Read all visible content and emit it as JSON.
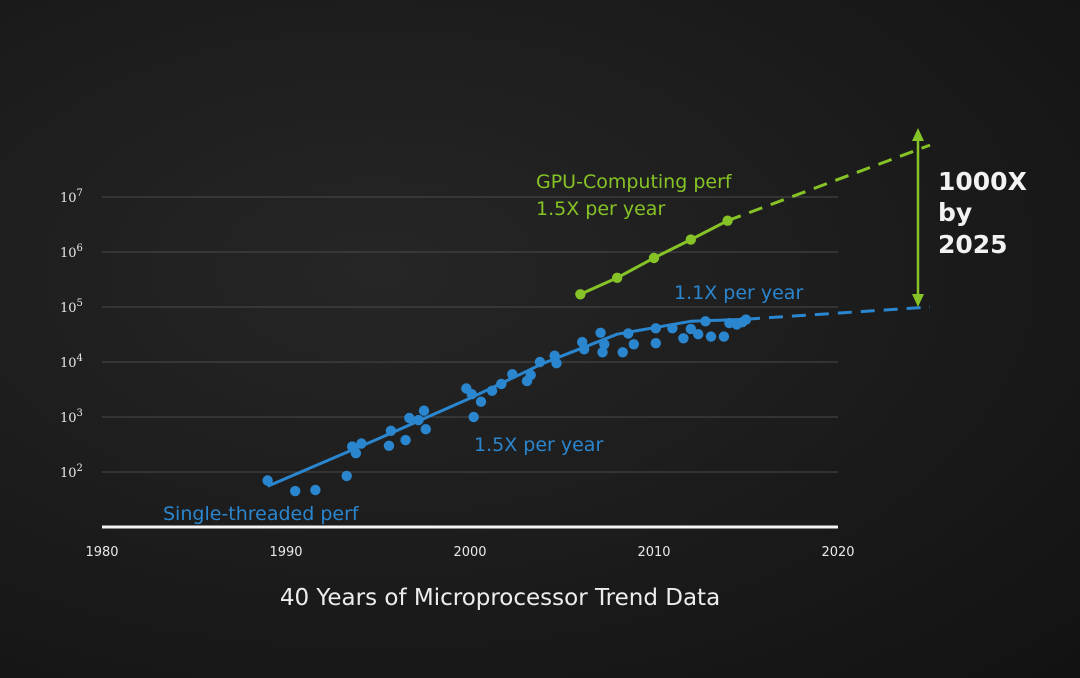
{
  "chart_data": {
    "type": "scatter",
    "title": "40 Years of Microprocessor Trend Data",
    "x_ticks": [
      1980,
      1990,
      2000,
      2010,
      2020
    ],
    "xlim": [
      1980,
      2020
    ],
    "y_scale": "log",
    "y_tick_exponents": [
      2,
      3,
      4,
      5,
      6,
      7
    ],
    "y_tick_base": "10",
    "ylim": [
      10,
      10000000
    ],
    "grid": true,
    "series": [
      {
        "name": "Single-threaded perf",
        "color": "#2a86cf",
        "points": [
          [
            1989,
            70
          ],
          [
            1990.5,
            45
          ],
          [
            1991.6,
            47
          ],
          [
            1993.3,
            85
          ],
          [
            1993.6,
            290
          ],
          [
            1993.8,
            220
          ],
          [
            1994.1,
            330
          ],
          [
            1995.6,
            300
          ],
          [
            1995.7,
            560
          ],
          [
            1996.5,
            380
          ],
          [
            1996.7,
            960
          ],
          [
            1997.2,
            880
          ],
          [
            1997.5,
            1300
          ],
          [
            1997.6,
            600
          ],
          [
            1999.8,
            3300
          ],
          [
            2000.1,
            2600
          ],
          [
            2000.2,
            1000
          ],
          [
            2000.6,
            1900
          ],
          [
            2001.2,
            3000
          ],
          [
            2001.7,
            4000
          ],
          [
            2002.3,
            6000
          ],
          [
            2003.1,
            4500
          ],
          [
            2003.3,
            5800
          ],
          [
            2003.8,
            10000
          ],
          [
            2004.6,
            13000
          ],
          [
            2004.7,
            9500
          ],
          [
            2006.1,
            23000
          ],
          [
            2006.2,
            17000
          ],
          [
            2007.1,
            34000
          ],
          [
            2007.2,
            15000
          ],
          [
            2007.3,
            21000
          ],
          [
            2008.3,
            15000
          ],
          [
            2008.6,
            33000
          ],
          [
            2008.9,
            21000
          ],
          [
            2010.1,
            41000
          ],
          [
            2010.1,
            22000
          ],
          [
            2011,
            41000
          ],
          [
            2011.6,
            27000
          ],
          [
            2012,
            40000
          ],
          [
            2012.4,
            32000
          ],
          [
            2012.8,
            55000
          ],
          [
            2013.1,
            29000
          ],
          [
            2013.8,
            29000
          ],
          [
            2014.1,
            51000
          ],
          [
            2014.5,
            48000
          ],
          [
            2014.8,
            53000
          ],
          [
            2015,
            59000
          ]
        ],
        "fit": [
          [
            1989,
            55
          ],
          [
            1995,
            400
          ],
          [
            2000,
            2200
          ],
          [
            2004,
            9500
          ],
          [
            2008,
            32000
          ],
          [
            2012,
            55000
          ],
          [
            2015,
            60000
          ]
        ],
        "projection": [
          [
            2015,
            60000
          ],
          [
            2025,
            100000
          ]
        ]
      },
      {
        "name": "GPU-Computing perf",
        "color": "#86c326",
        "points": [
          [
            2006,
            170000
          ],
          [
            2008,
            340000
          ],
          [
            2010,
            780000
          ],
          [
            2012,
            1680000
          ],
          [
            2014,
            3700000
          ]
        ],
        "projection": [
          [
            2014,
            3700000
          ],
          [
            2025,
            88000000
          ]
        ]
      }
    ],
    "annotations": {
      "gpu_name": "GPU-Computing perf",
      "gpu_rate": "1.5X per year",
      "cpu_late_rate": "1.1X per year",
      "cpu_early_rate": "1.5X per year",
      "cpu_name": "Single-threaded perf",
      "gap_line1": "1000X",
      "gap_line2": "by",
      "gap_line3": "2025"
    }
  }
}
